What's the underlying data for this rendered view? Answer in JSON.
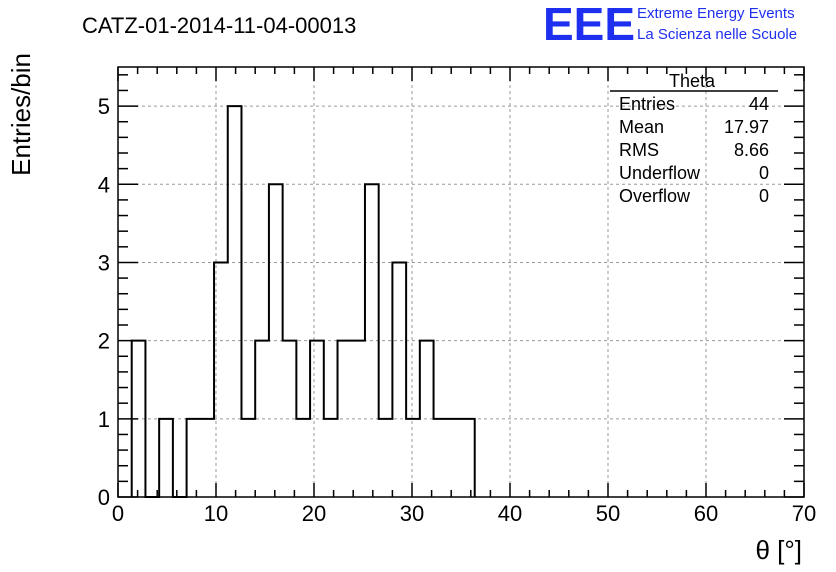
{
  "chart_data": {
    "type": "bar",
    "title": "CATZ-01-2014-11-04-00013",
    "xlabel": "θ [°]",
    "ylabel": "Entries/bin",
    "xlim": [
      0,
      70
    ],
    "ylim": [
      0,
      5.5
    ],
    "grid": true,
    "x_ticks": [
      0,
      10,
      20,
      30,
      40,
      50,
      60,
      70
    ],
    "y_ticks": [
      0,
      1,
      2,
      3,
      4,
      5
    ],
    "bin_width": 1.4,
    "bin_edges": [
      1.4,
      2.8,
      4.2,
      5.6,
      7.0,
      8.4,
      9.8,
      11.2,
      12.6,
      14.0,
      15.4,
      16.8,
      18.2,
      19.6,
      21.0,
      22.4,
      23.8,
      25.2,
      26.6,
      28.0,
      29.4,
      30.8,
      32.2,
      33.6,
      35.0
    ],
    "values": [
      2,
      0,
      1,
      0,
      1,
      1,
      3,
      5,
      1,
      2,
      4,
      2,
      1,
      2,
      1,
      2,
      2,
      4,
      1,
      3,
      1,
      2,
      1,
      1,
      1
    ]
  },
  "stats_box": {
    "title": "Theta",
    "rows": [
      {
        "label": "Entries",
        "value": "44"
      },
      {
        "label": "Mean",
        "value": "17.97"
      },
      {
        "label": "RMS",
        "value": "8.66"
      },
      {
        "label": "Underflow",
        "value": "0"
      },
      {
        "label": "Overflow",
        "value": "0"
      }
    ]
  },
  "logo": {
    "mark": "EEE",
    "line1": "Extreme Energy Events",
    "line2": "La Scienza nelle Scuole",
    "color": "#1f2ff0"
  }
}
